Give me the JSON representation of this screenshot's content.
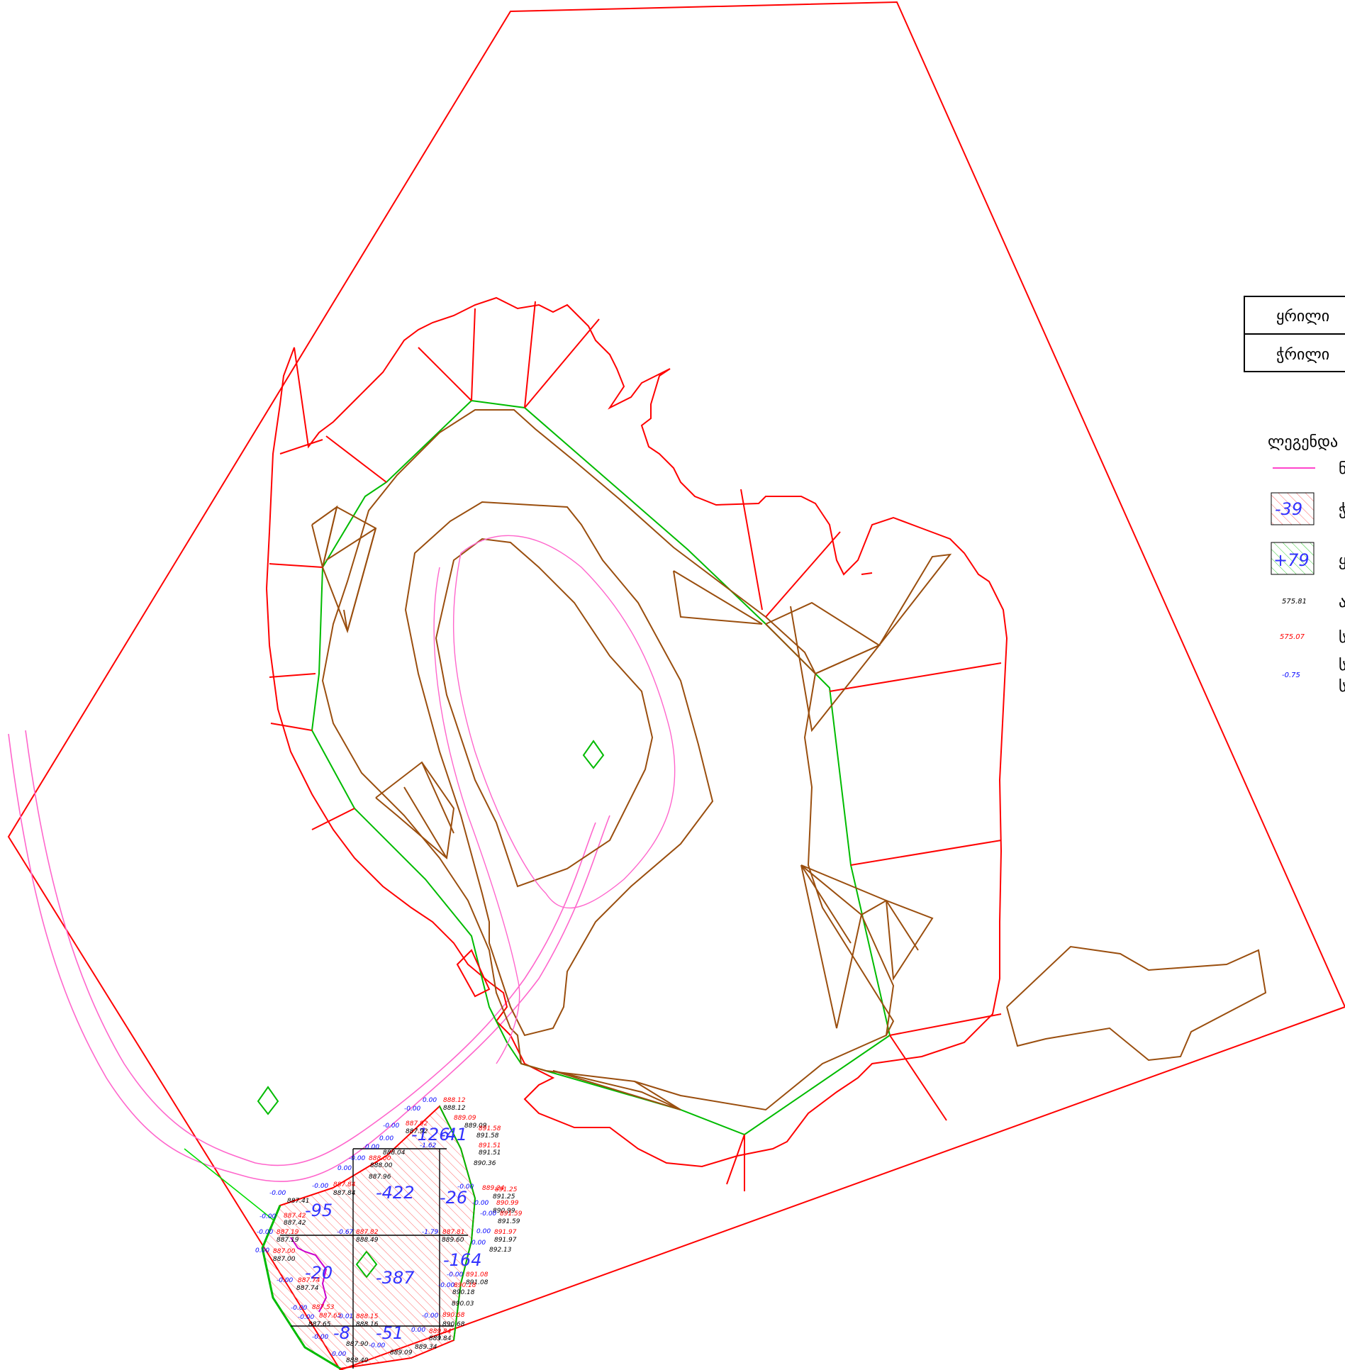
{
  "title_block": {
    "row1": "ყრილი",
    "row2": "ჭრილი"
  },
  "legend": {
    "heading": "ლეგენდა",
    "items": [
      {
        "kind": "line",
        "color": "#ff44cc",
        "text": "ნ"
      },
      {
        "kind": "hatch-red",
        "sample": "-39",
        "text": "ჭ"
      },
      {
        "kind": "hatch-green",
        "sample": "+79",
        "text": "ყ"
      },
      {
        "kind": "black-label",
        "sample": "575.81",
        "text": "ა"
      },
      {
        "kind": "red-label",
        "sample": "575.07",
        "text": "ს"
      },
      {
        "kind": "blue-label",
        "sample": "-0.75",
        "text": "ს",
        "text2": "ს"
      }
    ]
  },
  "volumes": {
    "v1": "-126",
    "v2": "-41",
    "v3": "-422",
    "v4": "-26",
    "v5": "-95",
    "v6": "-20",
    "v7": "-387",
    "v8": "-164",
    "v9": "-51",
    "v10": "-8"
  },
  "elevations": {
    "black": [
      "888.12",
      "889.09",
      "891.58",
      "887.92",
      "888.04",
      "891.51",
      "890.36",
      "888.00",
      "887.96",
      "887.41",
      "887.84",
      "891.25",
      "890.99",
      "891.59",
      "887.42",
      "887.19",
      "888.49",
      "889.60",
      "891.97",
      "892.13",
      "887.00",
      "887.74",
      "891.08",
      "890.18",
      "890.03",
      "890.68",
      "887.65",
      "888.16",
      "887.90",
      "889.09",
      "889.34",
      "889.84",
      "888.40"
    ],
    "red": [
      "888.12",
      "889.09",
      "891.58",
      "887.92",
      "888.00",
      "891.51",
      "887.84",
      "889.24",
      "891.25",
      "890.99",
      "891.59",
      "887.42",
      "887.19",
      "887.82",
      "887.81",
      "891.97",
      "887.00",
      "887.74",
      "891.08",
      "890.18",
      "887.53",
      "887.65",
      "888.15",
      "890.68",
      "889.84"
    ],
    "blue": [
      "0.00",
      "-0.00",
      "-0.00",
      "0.00",
      "-1.62",
      "-0.00",
      "0.00",
      "0.00",
      "-0.00",
      "-0.00",
      "-0.00",
      "-0.00",
      "-0.00",
      "0.00",
      "-0.00",
      "-0.00",
      "-0.67",
      "-1.79",
      "0.00",
      "0.00",
      "-0.00",
      "-0.00",
      "-0.00",
      "-0.00",
      "-0.00",
      "-0.01",
      "-0.00",
      "0.00",
      "-0.00",
      "-0.00",
      "-0.00"
    ]
  }
}
